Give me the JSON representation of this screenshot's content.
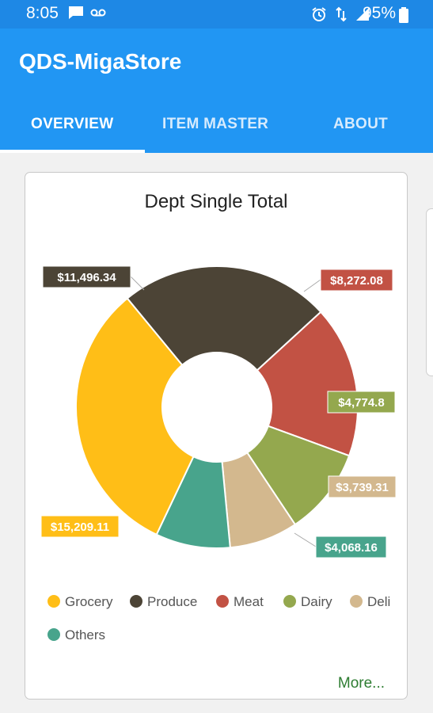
{
  "status": {
    "time": "8:05",
    "battery": "95%"
  },
  "app": {
    "title": "QDS-MigaStore"
  },
  "tabs": [
    {
      "label": "OVERVIEW",
      "active": true
    },
    {
      "label": "ITEM MASTER",
      "active": false
    },
    {
      "label": "ABOUT",
      "active": false
    }
  ],
  "card": {
    "more_label": "More..."
  },
  "chart_data": {
    "type": "pie",
    "title": "Dept Single Total",
    "donut": true,
    "legend_position": "bottom",
    "slices": [
      {
        "name": "Grocery",
        "value": 15209.11,
        "label": "$15,209.11",
        "color": "#ffbe17"
      },
      {
        "name": "Produce",
        "value": 11496.34,
        "label": "$11,496.34",
        "color": "#4c4436"
      },
      {
        "name": "Meat",
        "value": 8272.08,
        "label": "$8,272.08",
        "color": "#c25244"
      },
      {
        "name": "Dairy",
        "value": 4774.8,
        "label": "$4,774.8",
        "color": "#94a84e"
      },
      {
        "name": "Deli",
        "value": 3739.31,
        "label": "$3,739.31",
        "color": "#d3b88e"
      },
      {
        "name": "Others",
        "value": 4068.16,
        "label": "$4,068.16",
        "color": "#48a48c"
      }
    ]
  }
}
